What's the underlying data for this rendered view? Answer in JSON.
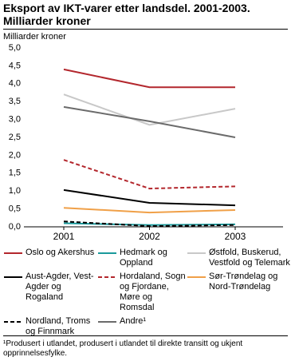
{
  "chart_data": {
    "type": "line",
    "title": "Eksport av IKT-varer etter landsdel. 2001-2003.",
    "subtitle": "Milliarder kroner",
    "y_label": "Milliarder kroner",
    "categories": [
      "2001",
      "2002",
      "2003"
    ],
    "ylim": [
      0,
      5
    ],
    "yticks": [
      {
        "value": 0,
        "label": "0,0"
      },
      {
        "value": 0.5,
        "label": "0,5"
      },
      {
        "value": 1,
        "label": "1,0"
      },
      {
        "value": 1.5,
        "label": "1,5"
      },
      {
        "value": 2,
        "label": "2,0"
      },
      {
        "value": 2.5,
        "label": "2,5"
      },
      {
        "value": 3,
        "label": "3,0"
      },
      {
        "value": 3.5,
        "label": "3,5"
      },
      {
        "value": 4,
        "label": "4,0"
      },
      {
        "value": 4.5,
        "label": "4,5"
      },
      {
        "value": 5,
        "label": "5,0"
      }
    ],
    "grid": false,
    "series": [
      {
        "name": "Oslo og Akershus",
        "color": "#b3272d",
        "dash": "solid",
        "values": [
          4.4,
          3.9,
          3.9
        ]
      },
      {
        "name": "Hedmark og Oppland",
        "color": "#1a9a9c",
        "dash": "solid",
        "values": [
          0.1,
          0.05,
          0.07
        ]
      },
      {
        "name": "Østfold, Buskerud, Vestfold og Telemark",
        "color": "#c8c8c8",
        "dash": "solid",
        "values": [
          3.7,
          2.85,
          3.3
        ]
      },
      {
        "name": "Aust-Agder, Vest-Agder og Rogaland",
        "color": "#000000",
        "dash": "solid",
        "values": [
          1.03,
          0.67,
          0.6
        ]
      },
      {
        "name": "Hordaland, Sogn og Fjordane, Møre og Romsdal",
        "color": "#b3272d",
        "dash": "dashed",
        "values": [
          1.87,
          1.07,
          1.13
        ]
      },
      {
        "name": "Sør-Trøndelag og Nord-Trøndelag",
        "color": "#f0a048",
        "dash": "solid",
        "values": [
          0.53,
          0.4,
          0.47
        ]
      },
      {
        "name": "Nordland, Troms og Finnmark",
        "color": "#000000",
        "dash": "dashed",
        "values": [
          0.15,
          0.02,
          0.05
        ]
      },
      {
        "name": "Andre¹",
        "color": "#6b6b6b",
        "dash": "solid",
        "values": [
          3.35,
          2.95,
          2.5
        ]
      }
    ],
    "footnote": "¹Produsert i utlandet, produsert i utlandet til direkte transitt og ukjent opprinnelsesfylke."
  }
}
